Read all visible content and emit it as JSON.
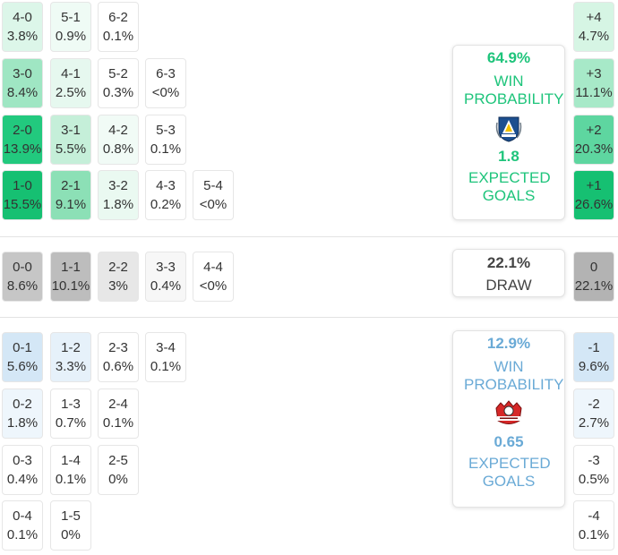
{
  "home": {
    "win_pct": "64.9%",
    "win_label": "WIN PROBABILITY",
    "xg": "1.8",
    "xg_label": "EXPECTED GOALS",
    "crest_icon": "levski-crest-icon",
    "colors": {
      "accent": "#1ec47b"
    },
    "scores": [
      {
        "s": "4-0",
        "p": "3.8%",
        "bg": "#dcf6e9"
      },
      {
        "s": "5-1",
        "p": "0.9%",
        "bg": "#effbf5"
      },
      {
        "s": "6-2",
        "p": "0.1%",
        "bg": "#ffffff"
      },
      {
        "s": "3-0",
        "p": "8.4%",
        "bg": "#9fe6c3"
      },
      {
        "s": "4-1",
        "p": "2.5%",
        "bg": "#e6f8ef"
      },
      {
        "s": "5-2",
        "p": "0.3%",
        "bg": "#ffffff"
      },
      {
        "s": "6-3",
        "p": "<0%",
        "bg": "#ffffff"
      },
      {
        "s": "2-0",
        "p": "13.9%",
        "bg": "#22c97e"
      },
      {
        "s": "3-1",
        "p": "5.5%",
        "bg": "#c5efd9"
      },
      {
        "s": "4-2",
        "p": "0.8%",
        "bg": "#f1fbf6"
      },
      {
        "s": "5-3",
        "p": "0.1%",
        "bg": "#ffffff"
      },
      {
        "s": "1-0",
        "p": "15.5%",
        "bg": "#16c072"
      },
      {
        "s": "2-1",
        "p": "9.1%",
        "bg": "#8ce0b6"
      },
      {
        "s": "3-2",
        "p": "1.8%",
        "bg": "#eaf9f1"
      },
      {
        "s": "4-3",
        "p": "0.2%",
        "bg": "#ffffff"
      },
      {
        "s": "5-4",
        "p": "<0%",
        "bg": "#ffffff"
      }
    ],
    "margins": [
      {
        "m": "+4",
        "p": "4.7%",
        "bg": "#d6f5e4"
      },
      {
        "m": "+3",
        "p": "11.1%",
        "bg": "#a7e9c8"
      },
      {
        "m": "+2",
        "p": "20.3%",
        "bg": "#5ed6a0"
      },
      {
        "m": "+1",
        "p": "26.6%",
        "bg": "#16c072"
      }
    ]
  },
  "draw": {
    "pct": "22.1%",
    "label": "DRAW",
    "scores": [
      {
        "s": "0-0",
        "p": "8.6%",
        "bg": "#c6c6c6"
      },
      {
        "s": "1-1",
        "p": "10.1%",
        "bg": "#bdbdbd"
      },
      {
        "s": "2-2",
        "p": "3%",
        "bg": "#e7e7e7"
      },
      {
        "s": "3-3",
        "p": "0.4%",
        "bg": "#f7f7f7"
      },
      {
        "s": "4-4",
        "p": "<0%",
        "bg": "#ffffff"
      }
    ],
    "margin": {
      "m": "0",
      "p": "22.1%",
      "bg": "#b3b3b3"
    }
  },
  "away": {
    "win_pct": "12.9%",
    "win_label": "WIN PROBABILITY",
    "xg": "0.65",
    "xg_label": "EXPECTED GOALS",
    "crest_icon": "montana-crest-icon",
    "colors": {
      "accent": "#6aaad6"
    },
    "scores": [
      {
        "s": "0-1",
        "p": "5.6%",
        "bg": "#d4e7f6"
      },
      {
        "s": "1-2",
        "p": "3.3%",
        "bg": "#e6f1fa"
      },
      {
        "s": "2-3",
        "p": "0.6%",
        "bg": "#ffffff"
      },
      {
        "s": "3-4",
        "p": "0.1%",
        "bg": "#ffffff"
      },
      {
        "s": "0-2",
        "p": "1.8%",
        "bg": "#eef6fc"
      },
      {
        "s": "1-3",
        "p": "0.7%",
        "bg": "#ffffff"
      },
      {
        "s": "2-4",
        "p": "0.1%",
        "bg": "#ffffff"
      },
      {
        "s": "0-3",
        "p": "0.4%",
        "bg": "#ffffff"
      },
      {
        "s": "1-4",
        "p": "0.1%",
        "bg": "#ffffff"
      },
      {
        "s": "2-5",
        "p": "0%",
        "bg": "#ffffff"
      },
      {
        "s": "0-4",
        "p": "0.1%",
        "bg": "#ffffff"
      },
      {
        "s": "1-5",
        "p": "0%",
        "bg": "#ffffff"
      }
    ],
    "margins": [
      {
        "m": "-1",
        "p": "9.6%",
        "bg": "#d4e7f6"
      },
      {
        "m": "-2",
        "p": "2.7%",
        "bg": "#eef6fc"
      },
      {
        "m": "-3",
        "p": "0.5%",
        "bg": "#ffffff"
      },
      {
        "m": "-4",
        "p": "0.1%",
        "bg": "#ffffff"
      }
    ]
  }
}
